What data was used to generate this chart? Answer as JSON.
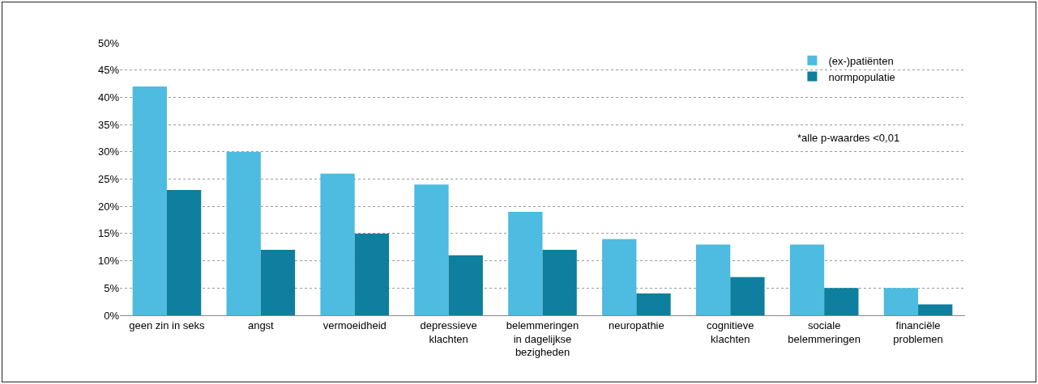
{
  "chart_data": {
    "type": "bar",
    "categories": [
      "geen zin in seks",
      "angst",
      "vermoeidheid",
      "depressieve\nklachten",
      "belemmeringen\nin dagelijkse\nbezigheden",
      "neuropathie",
      "cognitieve\nklachten",
      "sociale\nbelemmeringen",
      "financiële\nproblemen"
    ],
    "series": [
      {
        "name": "(ex-)patiënten",
        "color": "#4ebbe0",
        "values": [
          42,
          30,
          26,
          24,
          19,
          14,
          13,
          13,
          5
        ]
      },
      {
        "name": "normpopulatie",
        "color": "#0e7f9e",
        "values": [
          23,
          12,
          15,
          11,
          12,
          4,
          7,
          5,
          2
        ]
      }
    ],
    "ylim": [
      0,
      50
    ],
    "yticks": [
      {
        "value": 0,
        "label": "0%"
      },
      {
        "value": 5,
        "label": "5%"
      },
      {
        "value": 10,
        "label": "10%"
      },
      {
        "value": 15,
        "label": "15%"
      },
      {
        "value": 20,
        "label": "20%"
      },
      {
        "value": 25,
        "label": "25%"
      },
      {
        "value": 30,
        "label": "30%"
      },
      {
        "value": 35,
        "label": "35%"
      },
      {
        "value": 40,
        "label": "40%"
      },
      {
        "value": 45,
        "label": "45%"
      },
      {
        "value": 50,
        "label": "50%"
      }
    ],
    "grid": "y",
    "legend": "top right",
    "annotations": [
      "*alle p-waardes <0,01"
    ]
  }
}
